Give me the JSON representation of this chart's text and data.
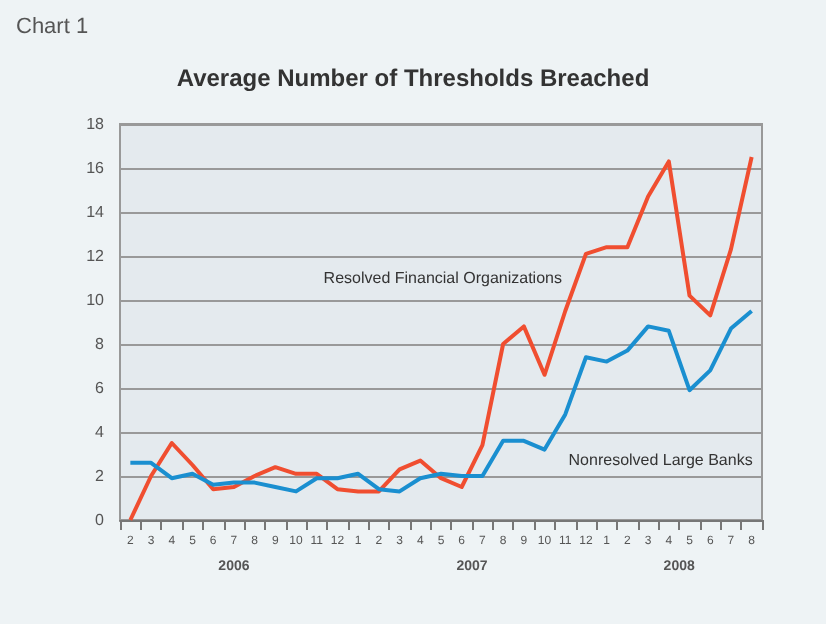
{
  "chart_data": {
    "type": "line",
    "title": "Average Number of Thresholds Breached",
    "annotations": [
      "Chart 1",
      "2006",
      "2007",
      "2008"
    ],
    "categories": [
      "2",
      "3",
      "4",
      "5",
      "6",
      "7",
      "8",
      "9",
      "10",
      "11",
      "12",
      "1",
      "2",
      "3",
      "4",
      "5",
      "6",
      "7",
      "8",
      "9",
      "10",
      "11",
      "12",
      "1",
      "2",
      "3",
      "4",
      "5",
      "6",
      "7",
      "8"
    ],
    "series": [
      {
        "name": "Resolved Financial Organizations",
        "color": "#f04e30",
        "values": [
          0,
          2.0,
          3.5,
          2.5,
          1.4,
          1.5,
          2.0,
          2.4,
          2.1,
          2.1,
          1.4,
          1.3,
          1.3,
          2.3,
          2.7,
          1.9,
          1.5,
          3.4,
          8.0,
          8.8,
          6.6,
          9.5,
          12.1,
          12.4,
          12.4,
          14.7,
          16.3,
          10.2,
          9.3,
          12.3,
          16.5
        ]
      },
      {
        "name": "Nonresolved Large Banks",
        "color": "#1a8fd0",
        "values": [
          2.6,
          2.6,
          1.9,
          2.1,
          1.6,
          1.7,
          1.7,
          1.5,
          1.3,
          1.9,
          1.9,
          2.1,
          1.4,
          1.3,
          1.9,
          2.1,
          2.0,
          2.0,
          3.6,
          3.6,
          3.2,
          4.8,
          7.4,
          7.2,
          7.7,
          8.8,
          8.6,
          5.9,
          6.8,
          8.7,
          9.5
        ]
      }
    ],
    "ylim": [
      0,
      18
    ],
    "yticks": [
      0,
      2,
      4,
      6,
      8,
      10,
      12,
      14,
      16,
      18
    ],
    "grid": "y",
    "legend": false,
    "marker": "none",
    "line_style": "solid"
  }
}
